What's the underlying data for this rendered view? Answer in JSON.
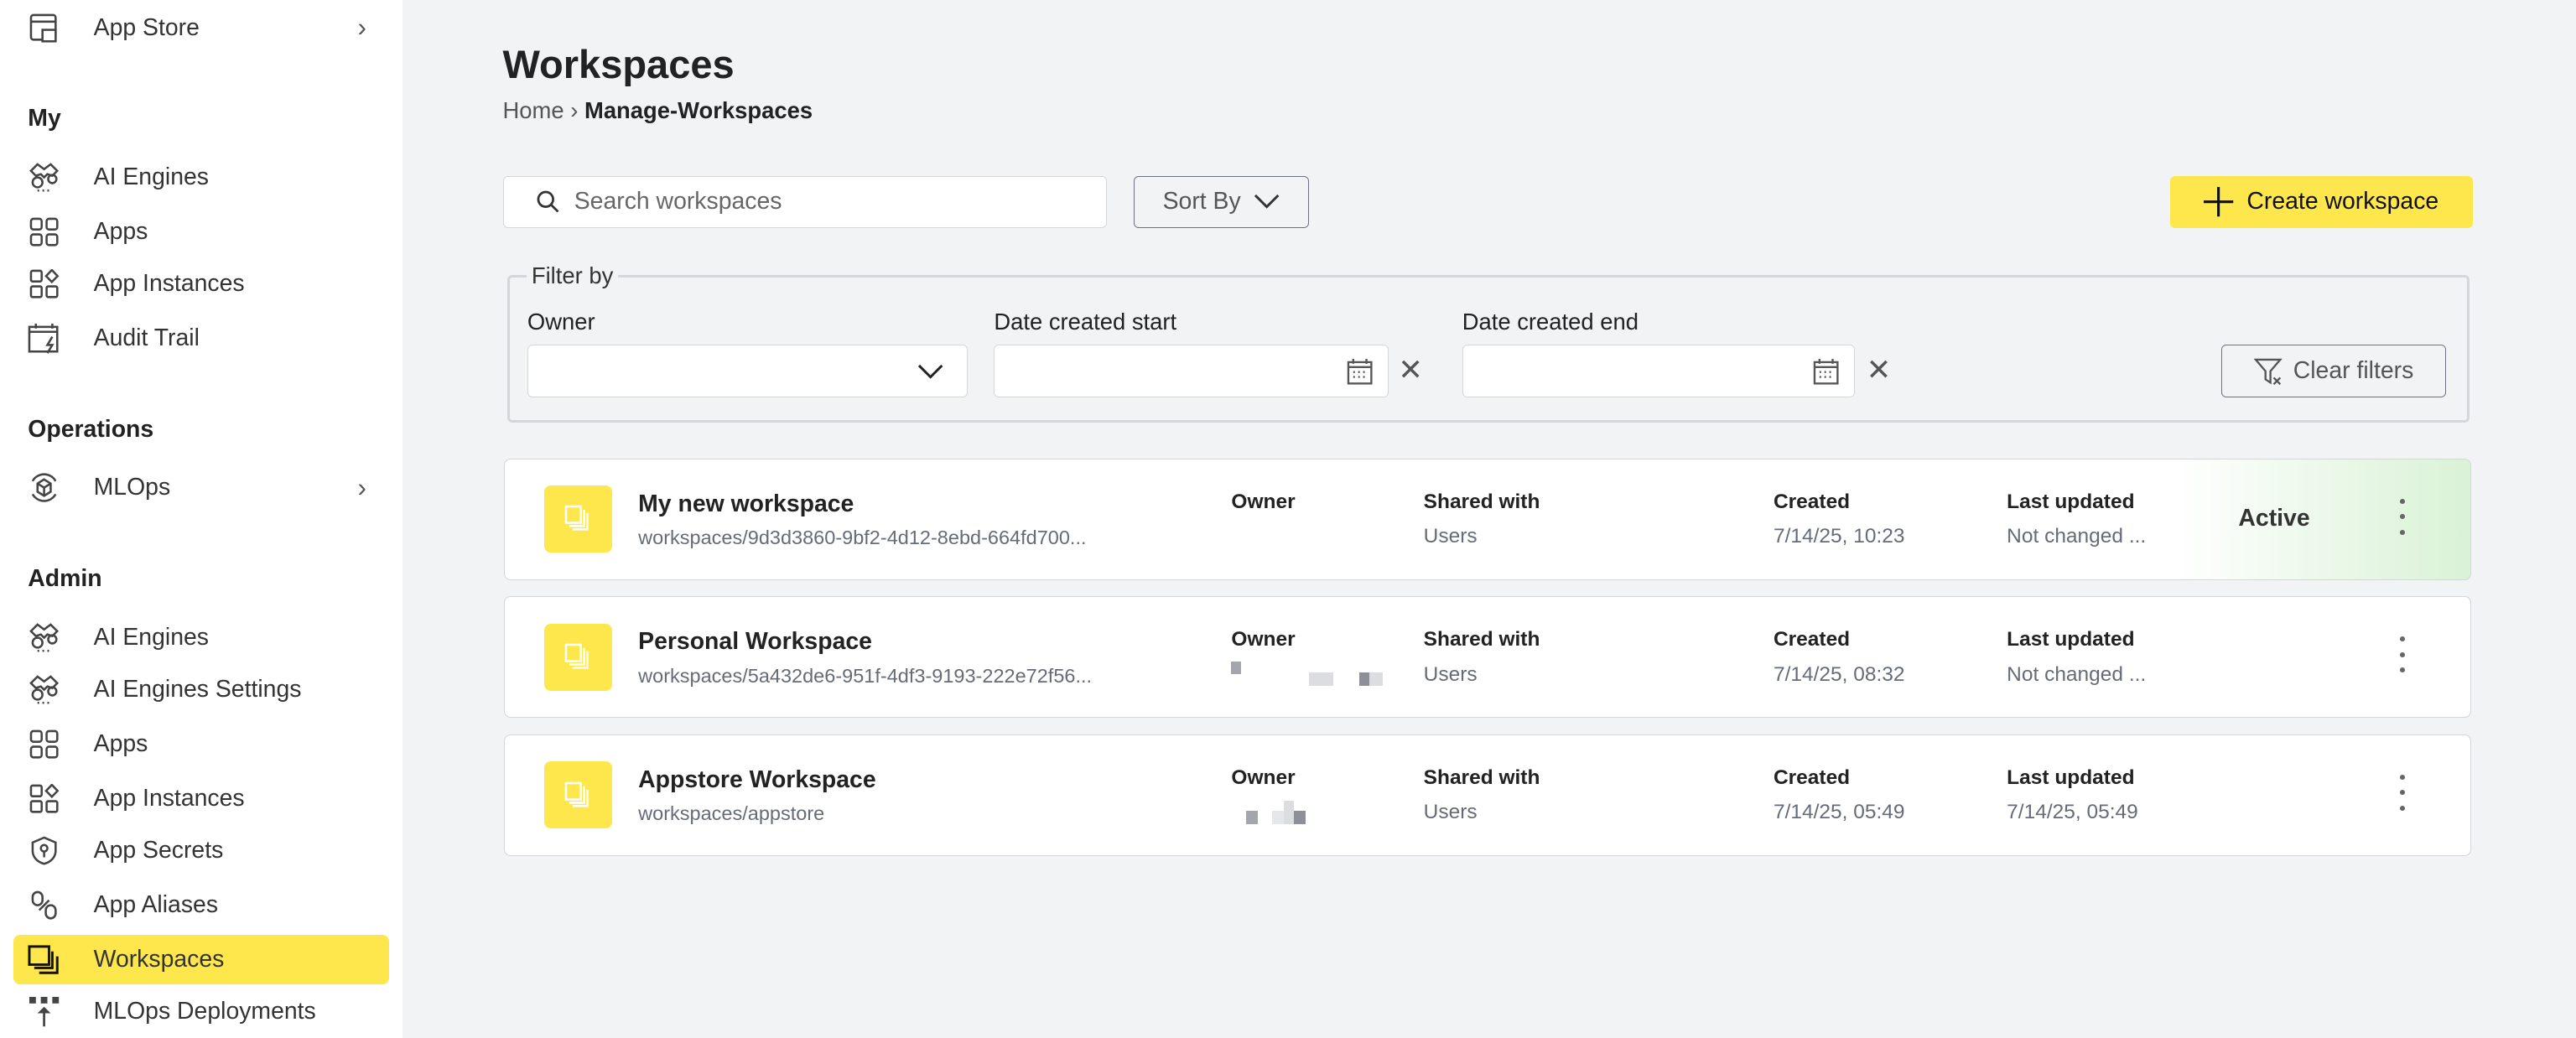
{
  "sidebar": {
    "app_store": "App Store",
    "sections": [
      {
        "heading": "My",
        "items": [
          "AI Engines",
          "Apps",
          "App Instances",
          "Audit Trail"
        ]
      },
      {
        "heading": "Operations",
        "items": [
          "MLOps"
        ]
      },
      {
        "heading": "Admin",
        "items": [
          "AI Engines",
          "AI Engines Settings",
          "Apps",
          "App Instances",
          "App Secrets",
          "App Aliases",
          "Workspaces",
          "MLOps Deployments"
        ]
      }
    ],
    "selected": "Workspaces"
  },
  "header": {
    "title": "Workspaces",
    "breadcrumb": [
      "Home",
      "Manage-Workspaces"
    ]
  },
  "toolbar": {
    "search_placeholder": "Search workspaces",
    "sort_label": "Sort By",
    "create_label": "Create workspace"
  },
  "filters": {
    "legend": "Filter by",
    "owner_label": "Owner",
    "start_label": "Date created start",
    "end_label": "Date created end",
    "clear_label": "Clear filters"
  },
  "columns": {
    "owner": "Owner",
    "shared": "Shared with",
    "created": "Created",
    "updated": "Last updated"
  },
  "workspaces": [
    {
      "name": "My new workspace",
      "path": "workspaces/9d3d3860-9bf2-4d12-8ebd-664fd700...",
      "shared": "Users",
      "created": "7/14/25, 10:23",
      "updated": "Not changed ...",
      "status": "Active"
    },
    {
      "name": "Personal Workspace",
      "path": "workspaces/5a432de6-951f-4df3-9193-222e72f56...",
      "shared": "Users",
      "created": "7/14/25, 08:32",
      "updated": "Not changed ...",
      "status": ""
    },
    {
      "name": "Appstore Workspace",
      "path": "workspaces/appstore",
      "shared": "Users",
      "created": "7/14/25, 05:49",
      "updated": "7/14/25, 05:49",
      "status": ""
    }
  ],
  "colors": {
    "accent": "#fde74c",
    "active_bg": "#d9f2d6",
    "background": "#f2f3f5"
  }
}
